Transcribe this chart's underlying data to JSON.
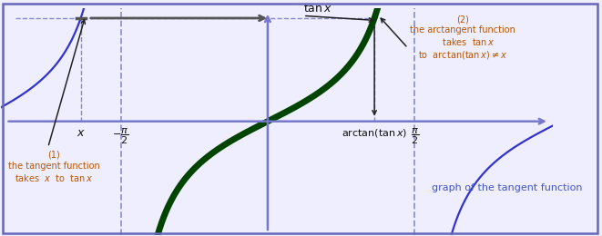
{
  "bg_color": "#eeeeff",
  "border_color": "#6666bb",
  "axis_color": "#7777cc",
  "tan_color": "#3333cc",
  "arctan_color": "#004400",
  "arctan_thick": 5.0,
  "tan_thick": 1.6,
  "dashed_color": "#8888cc",
  "text_color_dark": "#111111",
  "text_color_blue": "#4455cc",
  "text_color_orange": "#bb5500",
  "xlim": [
    -2.85,
    3.05
  ],
  "ylim": [
    -2.4,
    2.4
  ],
  "x_val": -2.0,
  "pi_over_2": 1.5707963267948966,
  "label_graph": "graph of the tangent function"
}
